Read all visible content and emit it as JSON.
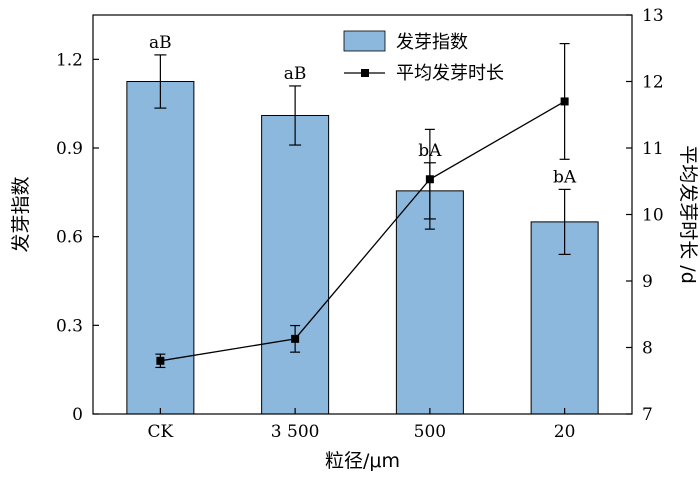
{
  "chart_data": {
    "type": "bar",
    "categories": [
      "CK",
      "3 500",
      "500",
      "20"
    ],
    "xlabel": "粒径/μm",
    "ylabel": "发芽指数",
    "y2label": "平均发芽时长 /d",
    "ylim": [
      0,
      1.35
    ],
    "y2lim": [
      7,
      13
    ],
    "yticks": [
      "0",
      "0.3",
      "0.6",
      "0.9",
      "1.2"
    ],
    "y2ticks": [
      "7",
      "8",
      "9",
      "10",
      "11",
      "12",
      "13"
    ],
    "legend_position": "top-right",
    "grid": false,
    "series": [
      {
        "name": "发芽指数",
        "type": "bar",
        "axis": "left",
        "color": "#8db8dd",
        "values": [
          1.125,
          1.01,
          0.755,
          0.65
        ],
        "errors": [
          0.09,
          0.1,
          0.095,
          0.11
        ],
        "annotations": [
          "aB",
          "aB",
          "bA",
          "bA"
        ]
      },
      {
        "name": "平均发芽时长",
        "type": "line",
        "axis": "right",
        "color": "#000000",
        "values": [
          7.8,
          8.13,
          10.53,
          11.7
        ],
        "errors": [
          0.1,
          0.2,
          0.75,
          0.87
        ]
      }
    ]
  }
}
